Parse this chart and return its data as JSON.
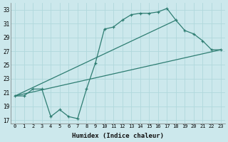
{
  "xlabel": "Humidex (Indice chaleur)",
  "background_color": "#cce8ec",
  "grid_color": "#b0d8dc",
  "line_color": "#2e7d72",
  "ylim": [
    16.5,
    34
  ],
  "xlim": [
    -0.5,
    23.5
  ],
  "yticks": [
    17,
    19,
    21,
    23,
    25,
    27,
    29,
    31,
    33
  ],
  "xticks": [
    0,
    1,
    2,
    3,
    4,
    5,
    6,
    7,
    8,
    9,
    10,
    11,
    12,
    13,
    14,
    15,
    16,
    17,
    18,
    19,
    20,
    21,
    22,
    23
  ],
  "line1_x": [
    0,
    1,
    2,
    3,
    4,
    5,
    6,
    7,
    8,
    9,
    10,
    11,
    12,
    13,
    14,
    15,
    16,
    17,
    18,
    19,
    20,
    21,
    22,
    23
  ],
  "line1_y": [
    20.5,
    20.5,
    21.5,
    21.5,
    17.5,
    18.5,
    17.5,
    17.2,
    21.5,
    25.3,
    30.2,
    30.5,
    31.5,
    32.3,
    32.5,
    32.5,
    32.7,
    33.2,
    31.5,
    30.0,
    29.5,
    28.5,
    27.2,
    27.2
  ],
  "line3_x": [
    0,
    23
  ],
  "line3_y": [
    20.5,
    27.2
  ],
  "line4_x": [
    0,
    18
  ],
  "line4_y": [
    20.5,
    31.5
  ]
}
